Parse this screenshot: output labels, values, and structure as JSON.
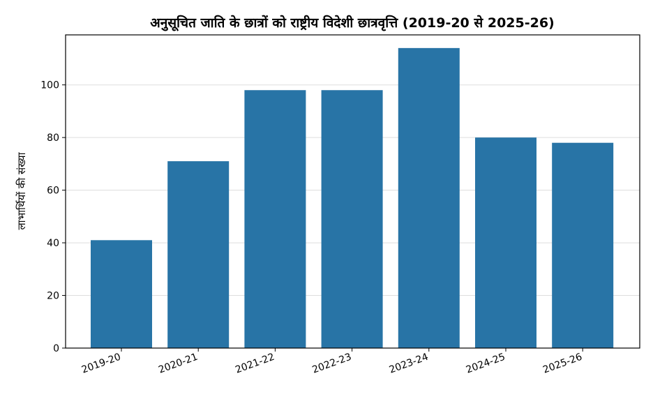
{
  "chart_data": {
    "type": "bar",
    "title": "अनुसूचित जाति के छात्रों को राष्ट्रीय विदेशी छात्रवृत्ति (2019-20 से 2025-26)",
    "xlabel": "",
    "ylabel": "लाभार्थियों की संख्या",
    "categories": [
      "2019-20",
      "2020-21",
      "2021-22",
      "2022-23",
      "2023-24",
      "2024-25",
      "2025-26"
    ],
    "values": [
      41,
      71,
      98,
      98,
      114,
      80,
      78
    ],
    "ylim": [
      0,
      119
    ],
    "yticks": [
      0,
      20,
      40,
      60,
      80,
      100
    ],
    "grid": true,
    "grid_axis": "y",
    "bar_color": "#2874a6"
  }
}
